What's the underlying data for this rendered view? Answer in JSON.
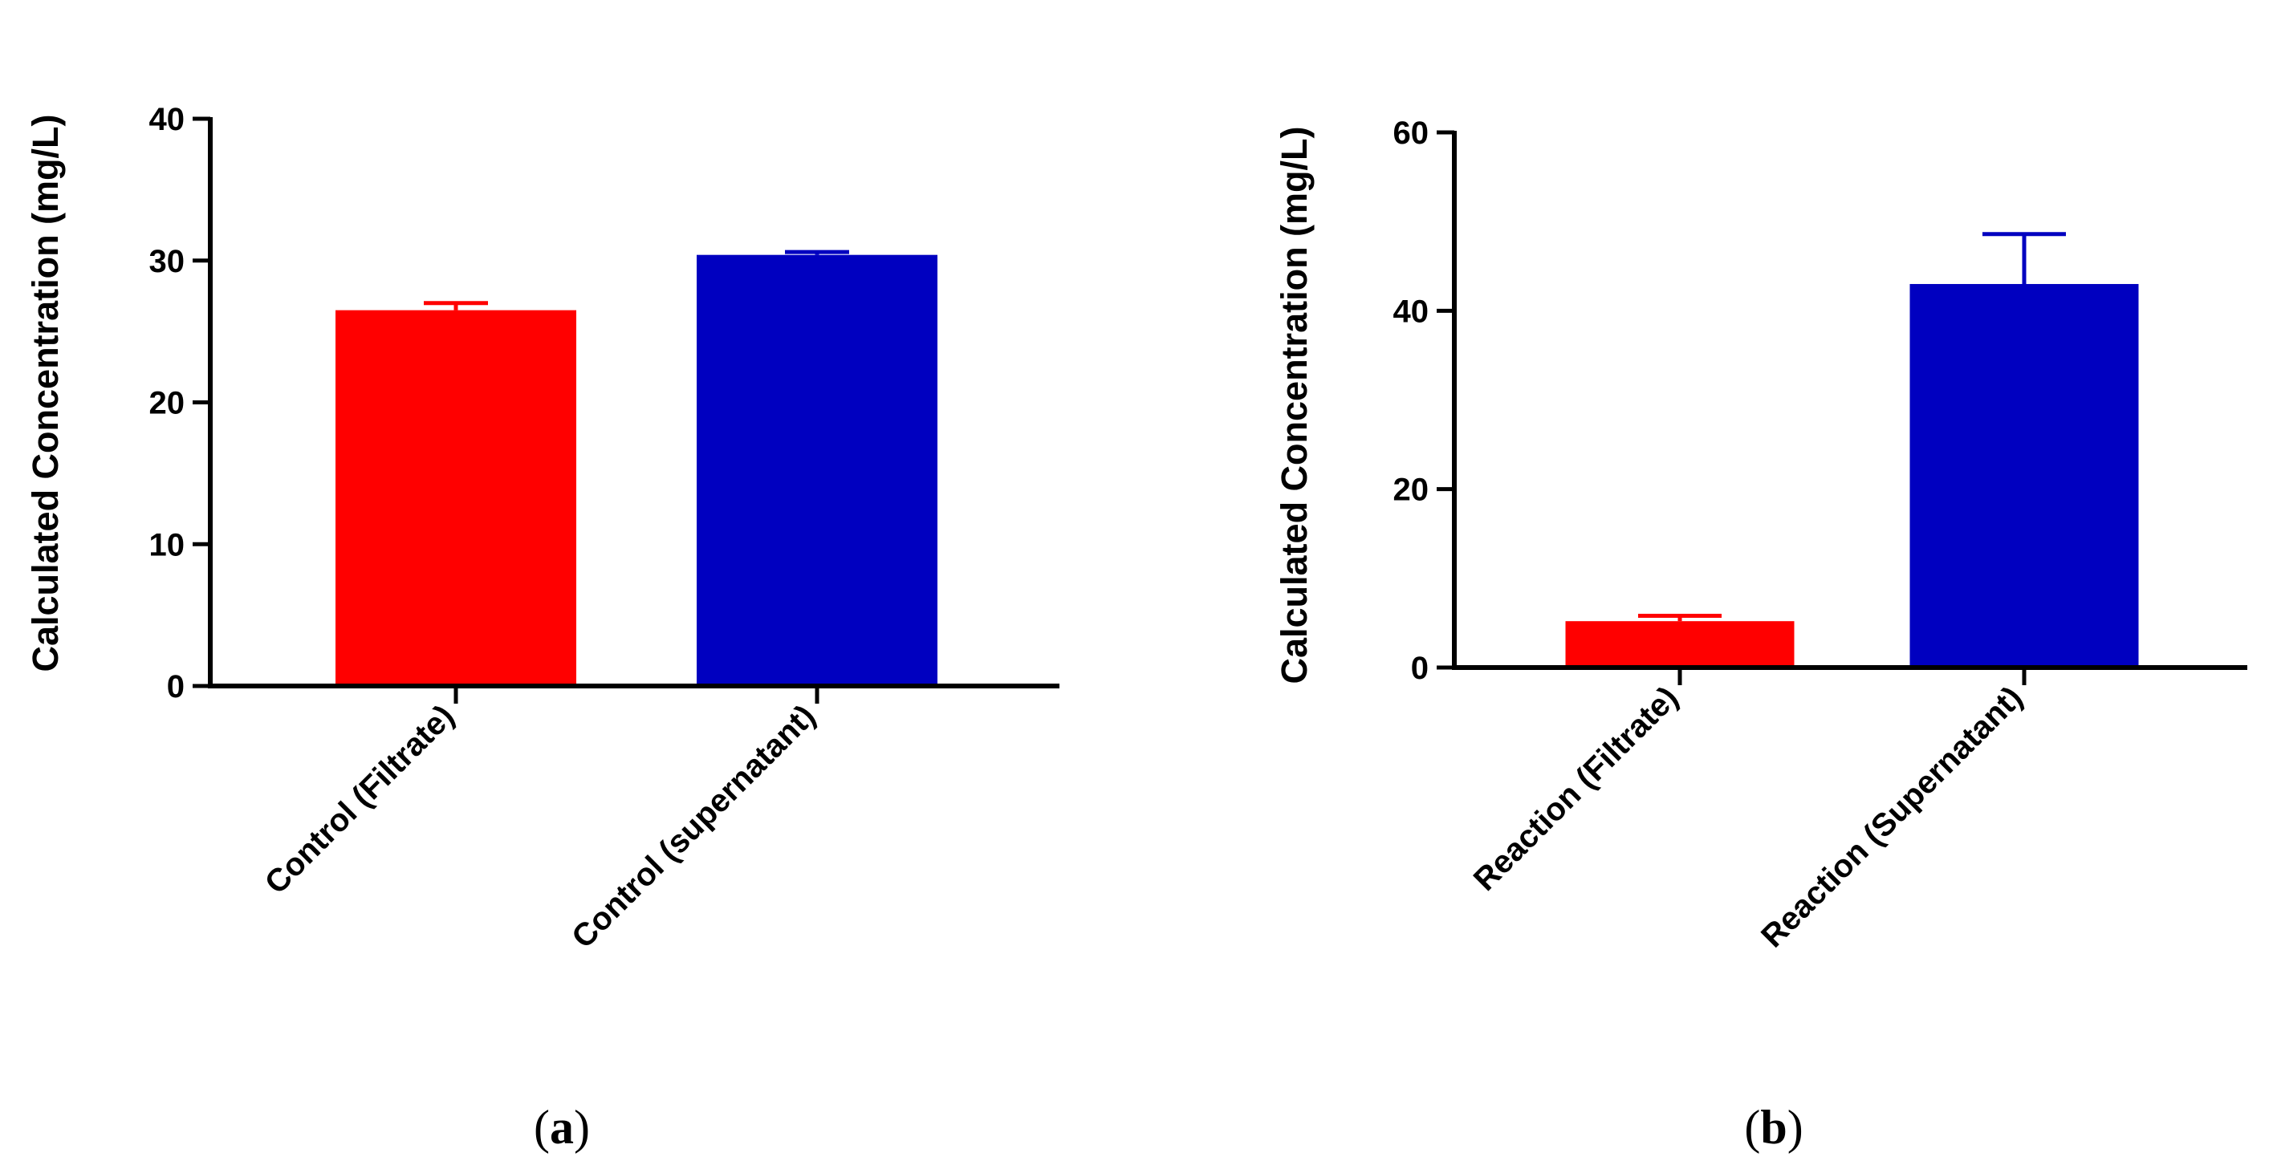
{
  "chart_data": [
    {
      "type": "bar",
      "panel_label": "a",
      "title": "",
      "xlabel": "",
      "ylabel": "Calculated Concentration (mg/L)",
      "ylim": [
        0,
        40
      ],
      "yticks": [
        0,
        10,
        20,
        30,
        40
      ],
      "categories": [
        "Control (Filtrate)",
        "Control (supernatant)"
      ],
      "values": [
        26.5,
        30.4
      ],
      "errors": [
        0.5,
        0.2
      ],
      "colors": [
        "#ff0000",
        "#0000c0"
      ]
    },
    {
      "type": "bar",
      "panel_label": "b",
      "title": "",
      "xlabel": "",
      "ylabel": "Calculated Concentration (mg/L)",
      "ylim": [
        0,
        60
      ],
      "yticks": [
        0,
        20,
        40,
        60
      ],
      "categories": [
        "Reaction (Filtrate)",
        "Reaction (Supernatant)"
      ],
      "values": [
        5.2,
        43
      ],
      "errors": [
        0.6,
        5.6
      ],
      "colors": [
        "#ff0000",
        "#0000c0"
      ]
    }
  ]
}
